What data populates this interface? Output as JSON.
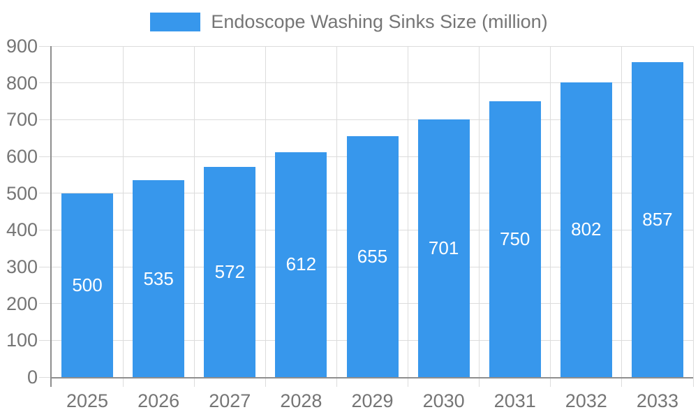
{
  "chart_data": {
    "type": "bar",
    "title": "Endoscope Washing Sinks Size (million)",
    "legend": [
      "Endoscope Washing Sinks Size (million)"
    ],
    "legend_position": "top-center",
    "categories": [
      "2025",
      "2026",
      "2027",
      "2028",
      "2029",
      "2030",
      "2031",
      "2032",
      "2033"
    ],
    "values": [
      500,
      535,
      572,
      612,
      655,
      701,
      750,
      802,
      857
    ],
    "xlabel": "",
    "ylabel": "",
    "ylim": [
      0,
      900
    ],
    "ytick_step": 100,
    "grid": true,
    "value_labels": "inside-center"
  },
  "colors": {
    "bar": "#3797EC",
    "axis_line": "#8E8E8E",
    "gridline": "#DCDCDC",
    "axis_text": "#757575",
    "legend_text": "#757575",
    "value_label_text": "#FFFFFF",
    "background": "#FFFFFF"
  }
}
